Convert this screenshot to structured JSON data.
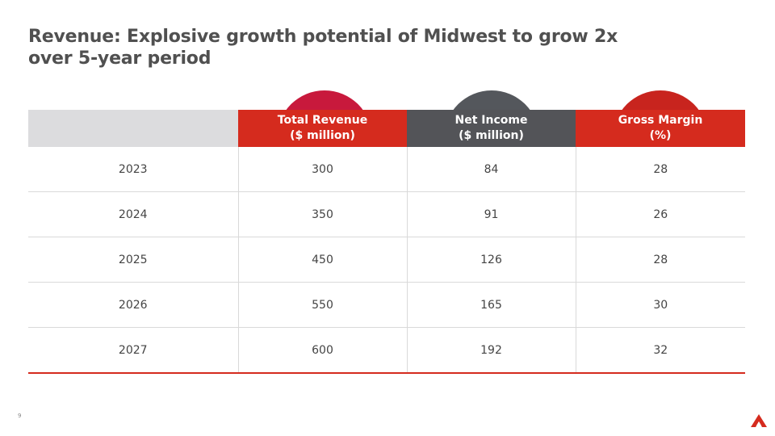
{
  "title": "Revenue: Explosive growth potential of Midwest to grow 2x over 5-year period",
  "table": {
    "headers": [
      {
        "line1": "",
        "line2": ""
      },
      {
        "line1": "Total Revenue",
        "line2": "($ million)"
      },
      {
        "line1": "Net Income",
        "line2": "($ million)"
      },
      {
        "line1": "Gross Margin",
        "line2": "(%)"
      }
    ],
    "rows": [
      [
        "2023",
        "300",
        "84",
        "28"
      ],
      [
        "2024",
        "350",
        "91",
        "26"
      ],
      [
        "2025",
        "450",
        "126",
        "28"
      ],
      [
        "2026",
        "550",
        "165",
        "30"
      ],
      [
        "2027",
        "600",
        "192",
        "32"
      ]
    ]
  },
  "footer": {
    "page_number": "9",
    "logo_icon": "brand-logo-icon"
  },
  "colors": {
    "accent_red": "#d52b1e",
    "dark_gray": "#535458",
    "header_blank": "#dcdcde"
  }
}
